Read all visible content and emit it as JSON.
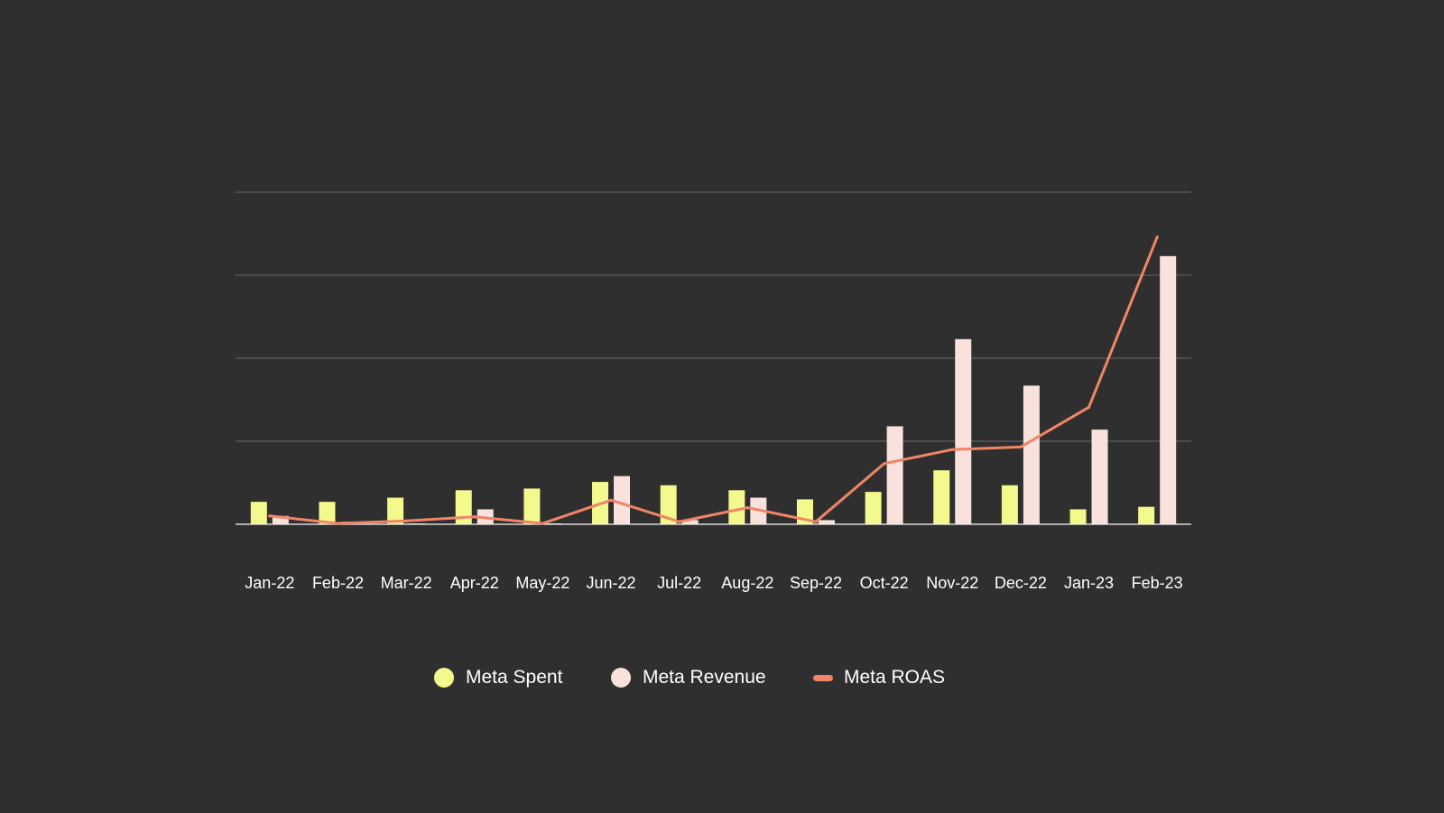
{
  "chart_data": {
    "type": "bar",
    "title": "",
    "xlabel": "",
    "ylabel": "",
    "categories": [
      "Jan-22",
      "Feb-22",
      "Mar-22",
      "Apr-22",
      "May-22",
      "Jun-22",
      "Jul-22",
      "Aug-22",
      "Sep-22",
      "Oct-22",
      "Nov-22",
      "Dec-22",
      "Jan-23",
      "Feb-23"
    ],
    "series": [
      {
        "name": "Meta Spent",
        "kind": "bar",
        "color": "#f3f98c",
        "values": [
          0.27,
          0.27,
          0.32,
          0.41,
          0.43,
          0.51,
          0.47,
          0.41,
          0.3,
          0.39,
          0.65,
          0.47,
          0.18,
          0.21
        ]
      },
      {
        "name": "Meta Revenue",
        "kind": "bar",
        "color": "#f9e1dc",
        "values": [
          0.1,
          0.03,
          0.01,
          0.18,
          0.01,
          0.58,
          0.05,
          0.32,
          0.05,
          1.18,
          2.23,
          1.67,
          1.14,
          3.23
        ]
      },
      {
        "name": "Meta ROAS",
        "kind": "line",
        "color": "#f08567",
        "values": [
          0.1,
          0.01,
          0.04,
          0.09,
          0.01,
          0.29,
          0.03,
          0.2,
          0.03,
          0.73,
          0.9,
          0.93,
          1.41,
          3.46
        ]
      }
    ],
    "ylim": [
      0,
      4
    ],
    "grid": true,
    "legend_position": "bottom-center"
  }
}
